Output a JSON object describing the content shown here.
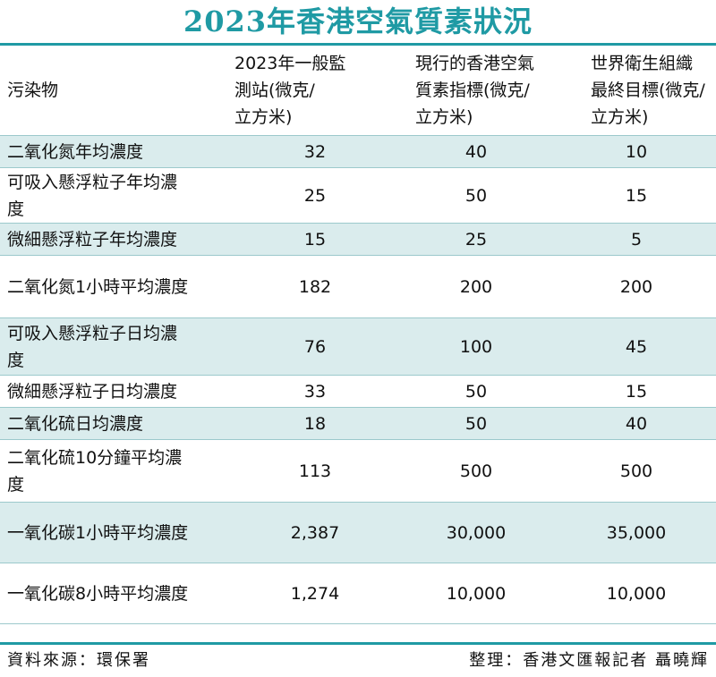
{
  "chart_data": {
    "type": "table",
    "title": "2023年香港空氣質素狀況",
    "columns": [
      "污染物",
      "2023年一般監測站(微克/立方米)",
      "現行的香港空氣質素指標(微克/立方米)",
      "世界衛生組織最終目標(微克/立方米)"
    ],
    "header_lines": [
      [
        "污染物"
      ],
      [
        "2023年一般監",
        "測站(微克/",
        "立方米)"
      ],
      [
        "現行的香港空氣",
        "質素指標(微克/",
        "立方米)"
      ],
      [
        "世界衛生組織",
        "最終目標(微克/",
        "立方米)"
      ]
    ],
    "rows": [
      {
        "label_lines": [
          "二氧化氮年均濃度"
        ],
        "values": [
          "32",
          "40",
          "10"
        ]
      },
      {
        "label_lines": [
          "可吸入懸浮粒子年均濃",
          "度"
        ],
        "values": [
          "25",
          "50",
          "15"
        ]
      },
      {
        "label_lines": [
          "微細懸浮粒子年均濃度"
        ],
        "values": [
          "15",
          "25",
          "5"
        ]
      },
      {
        "label_lines": [
          "二氧化氮1小時平均濃度"
        ],
        "values": [
          "182",
          "200",
          "200"
        ]
      },
      {
        "label_lines": [
          "可吸入懸浮粒子日均濃",
          "度"
        ],
        "values": [
          "76",
          "100",
          "45"
        ]
      },
      {
        "label_lines": [
          "微細懸浮粒子日均濃度"
        ],
        "values": [
          "33",
          "50",
          "15"
        ]
      },
      {
        "label_lines": [
          "二氧化硫日均濃度"
        ],
        "values": [
          "18",
          "50",
          "40"
        ]
      },
      {
        "label_lines": [
          "二氧化硫10分鐘平均濃",
          "度"
        ],
        "values": [
          "113",
          "500",
          "500"
        ]
      },
      {
        "label_lines": [
          "一氧化碳1小時平均濃度"
        ],
        "values": [
          "2,387",
          "30,000",
          "35,000"
        ]
      },
      {
        "label_lines": [
          "一氧化碳8小時平均濃度"
        ],
        "values": [
          "1,274",
          "10,000",
          "10,000"
        ]
      }
    ]
  },
  "footer": {
    "source": "資料來源：環保署",
    "credit": "整理：香港文匯報記者 聶曉輝"
  },
  "colors": {
    "accent": "#1f9aa4",
    "row_shade": "#daeced",
    "rule": "#9cc9cc"
  }
}
